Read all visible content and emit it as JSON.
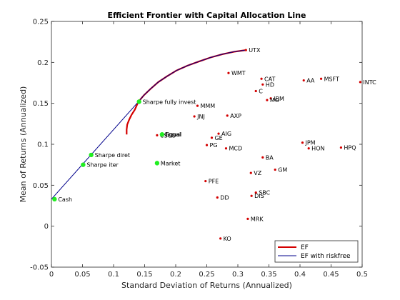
{
  "chart_data": {
    "type": "scatter",
    "title": "Efficient Frontier with Capital Allocation Line",
    "xlabel": "Standard Deviation of Returns (Annualized)",
    "ylabel": "Mean of Returns (Annualized)",
    "xlim": [
      0,
      0.5
    ],
    "ylim": [
      -0.05,
      0.25
    ],
    "xticks": [
      "0",
      "0.05",
      "0.1",
      "0.15",
      "0.2",
      "0.25",
      "0.3",
      "0.35",
      "0.4",
      "0.45",
      "0.5"
    ],
    "yticks": [
      "-0.05",
      "0",
      "0.05",
      "0.1",
      "0.15",
      "0.2",
      "0.25"
    ],
    "grid": false,
    "legend_position": "bottom-right",
    "series": [
      {
        "name": "EF",
        "color": "#d40000",
        "points": [
          [
            0.121,
            0.112
          ],
          [
            0.121,
            0.118
          ],
          [
            0.122,
            0.124
          ],
          [
            0.125,
            0.13
          ],
          [
            0.129,
            0.136
          ],
          [
            0.134,
            0.142
          ],
          [
            0.14,
            0.152
          ],
          [
            0.149,
            0.16
          ],
          [
            0.16,
            0.168
          ],
          [
            0.172,
            0.176
          ],
          [
            0.186,
            0.183
          ],
          [
            0.201,
            0.19
          ],
          [
            0.219,
            0.196
          ],
          [
            0.237,
            0.201
          ],
          [
            0.256,
            0.206
          ],
          [
            0.275,
            0.21
          ],
          [
            0.294,
            0.213
          ],
          [
            0.313,
            0.215
          ]
        ]
      },
      {
        "name": "EF with riskfree",
        "color": "#00008b",
        "points": [
          [
            0.0,
            0.033
          ],
          [
            0.14,
            0.152
          ],
          [
            0.149,
            0.16
          ],
          [
            0.16,
            0.168
          ],
          [
            0.172,
            0.176
          ],
          [
            0.186,
            0.183
          ],
          [
            0.201,
            0.19
          ],
          [
            0.219,
            0.196
          ],
          [
            0.237,
            0.201
          ],
          [
            0.256,
            0.206
          ],
          [
            0.275,
            0.21
          ],
          [
            0.294,
            0.213
          ],
          [
            0.313,
            0.215
          ]
        ]
      }
    ],
    "assets": [
      {
        "label": "UTX",
        "x": 0.313,
        "y": 0.215
      },
      {
        "label": "WMT",
        "x": 0.285,
        "y": 0.187
      },
      {
        "label": "CAT",
        "x": 0.338,
        "y": 0.18
      },
      {
        "label": "AA",
        "x": 0.406,
        "y": 0.178
      },
      {
        "label": "MSFT",
        "x": 0.434,
        "y": 0.18
      },
      {
        "label": "INTC",
        "x": 0.497,
        "y": 0.176
      },
      {
        "label": "HD",
        "x": 0.34,
        "y": 0.173
      },
      {
        "label": "C",
        "x": 0.329,
        "y": 0.165
      },
      {
        "label": "IBM",
        "x": 0.353,
        "y": 0.156
      },
      {
        "label": "MO",
        "x": 0.347,
        "y": 0.154
      },
      {
        "label": "MMM",
        "x": 0.235,
        "y": 0.147
      },
      {
        "label": "JNJ",
        "x": 0.23,
        "y": 0.134
      },
      {
        "label": "AXP",
        "x": 0.283,
        "y": 0.135
      },
      {
        "label": "Equal",
        "x": 0.178,
        "y": 0.112
      },
      {
        "label": "CSCO",
        "x": 0.17,
        "y": 0.111
      },
      {
        "label": "AIG",
        "x": 0.269,
        "y": 0.113
      },
      {
        "label": "GE",
        "x": 0.258,
        "y": 0.108
      },
      {
        "label": "PG",
        "x": 0.25,
        "y": 0.099
      },
      {
        "label": "MCD",
        "x": 0.281,
        "y": 0.095
      },
      {
        "label": "JPM",
        "x": 0.404,
        "y": 0.102
      },
      {
        "label": "HON",
        "x": 0.414,
        "y": 0.095
      },
      {
        "label": "HPQ",
        "x": 0.466,
        "y": 0.096
      },
      {
        "label": "BA",
        "x": 0.34,
        "y": 0.084
      },
      {
        "label": "GM",
        "x": 0.36,
        "y": 0.069
      },
      {
        "label": "VZ",
        "x": 0.321,
        "y": 0.065
      },
      {
        "label": "PFE",
        "x": 0.248,
        "y": 0.055
      },
      {
        "label": "SBC",
        "x": 0.329,
        "y": 0.041
      },
      {
        "label": "DIS",
        "x": 0.322,
        "y": 0.037
      },
      {
        "label": "DD",
        "x": 0.267,
        "y": 0.035
      },
      {
        "label": "MRK",
        "x": 0.316,
        "y": 0.009
      },
      {
        "label": "KO",
        "x": 0.272,
        "y": -0.015
      }
    ],
    "portfolios": [
      {
        "label": "Cash",
        "x": 0.005,
        "y": 0.033
      },
      {
        "label": "Sharpe iter",
        "x": 0.051,
        "y": 0.075
      },
      {
        "label": "Sharpe diret",
        "x": 0.064,
        "y": 0.087
      },
      {
        "label": "Sharpe fully invest",
        "x": 0.141,
        "y": 0.152
      },
      {
        "label": "Market",
        "x": 0.17,
        "y": 0.077
      },
      {
        "label": "Equal",
        "x": 0.178,
        "y": 0.112
      }
    ]
  }
}
